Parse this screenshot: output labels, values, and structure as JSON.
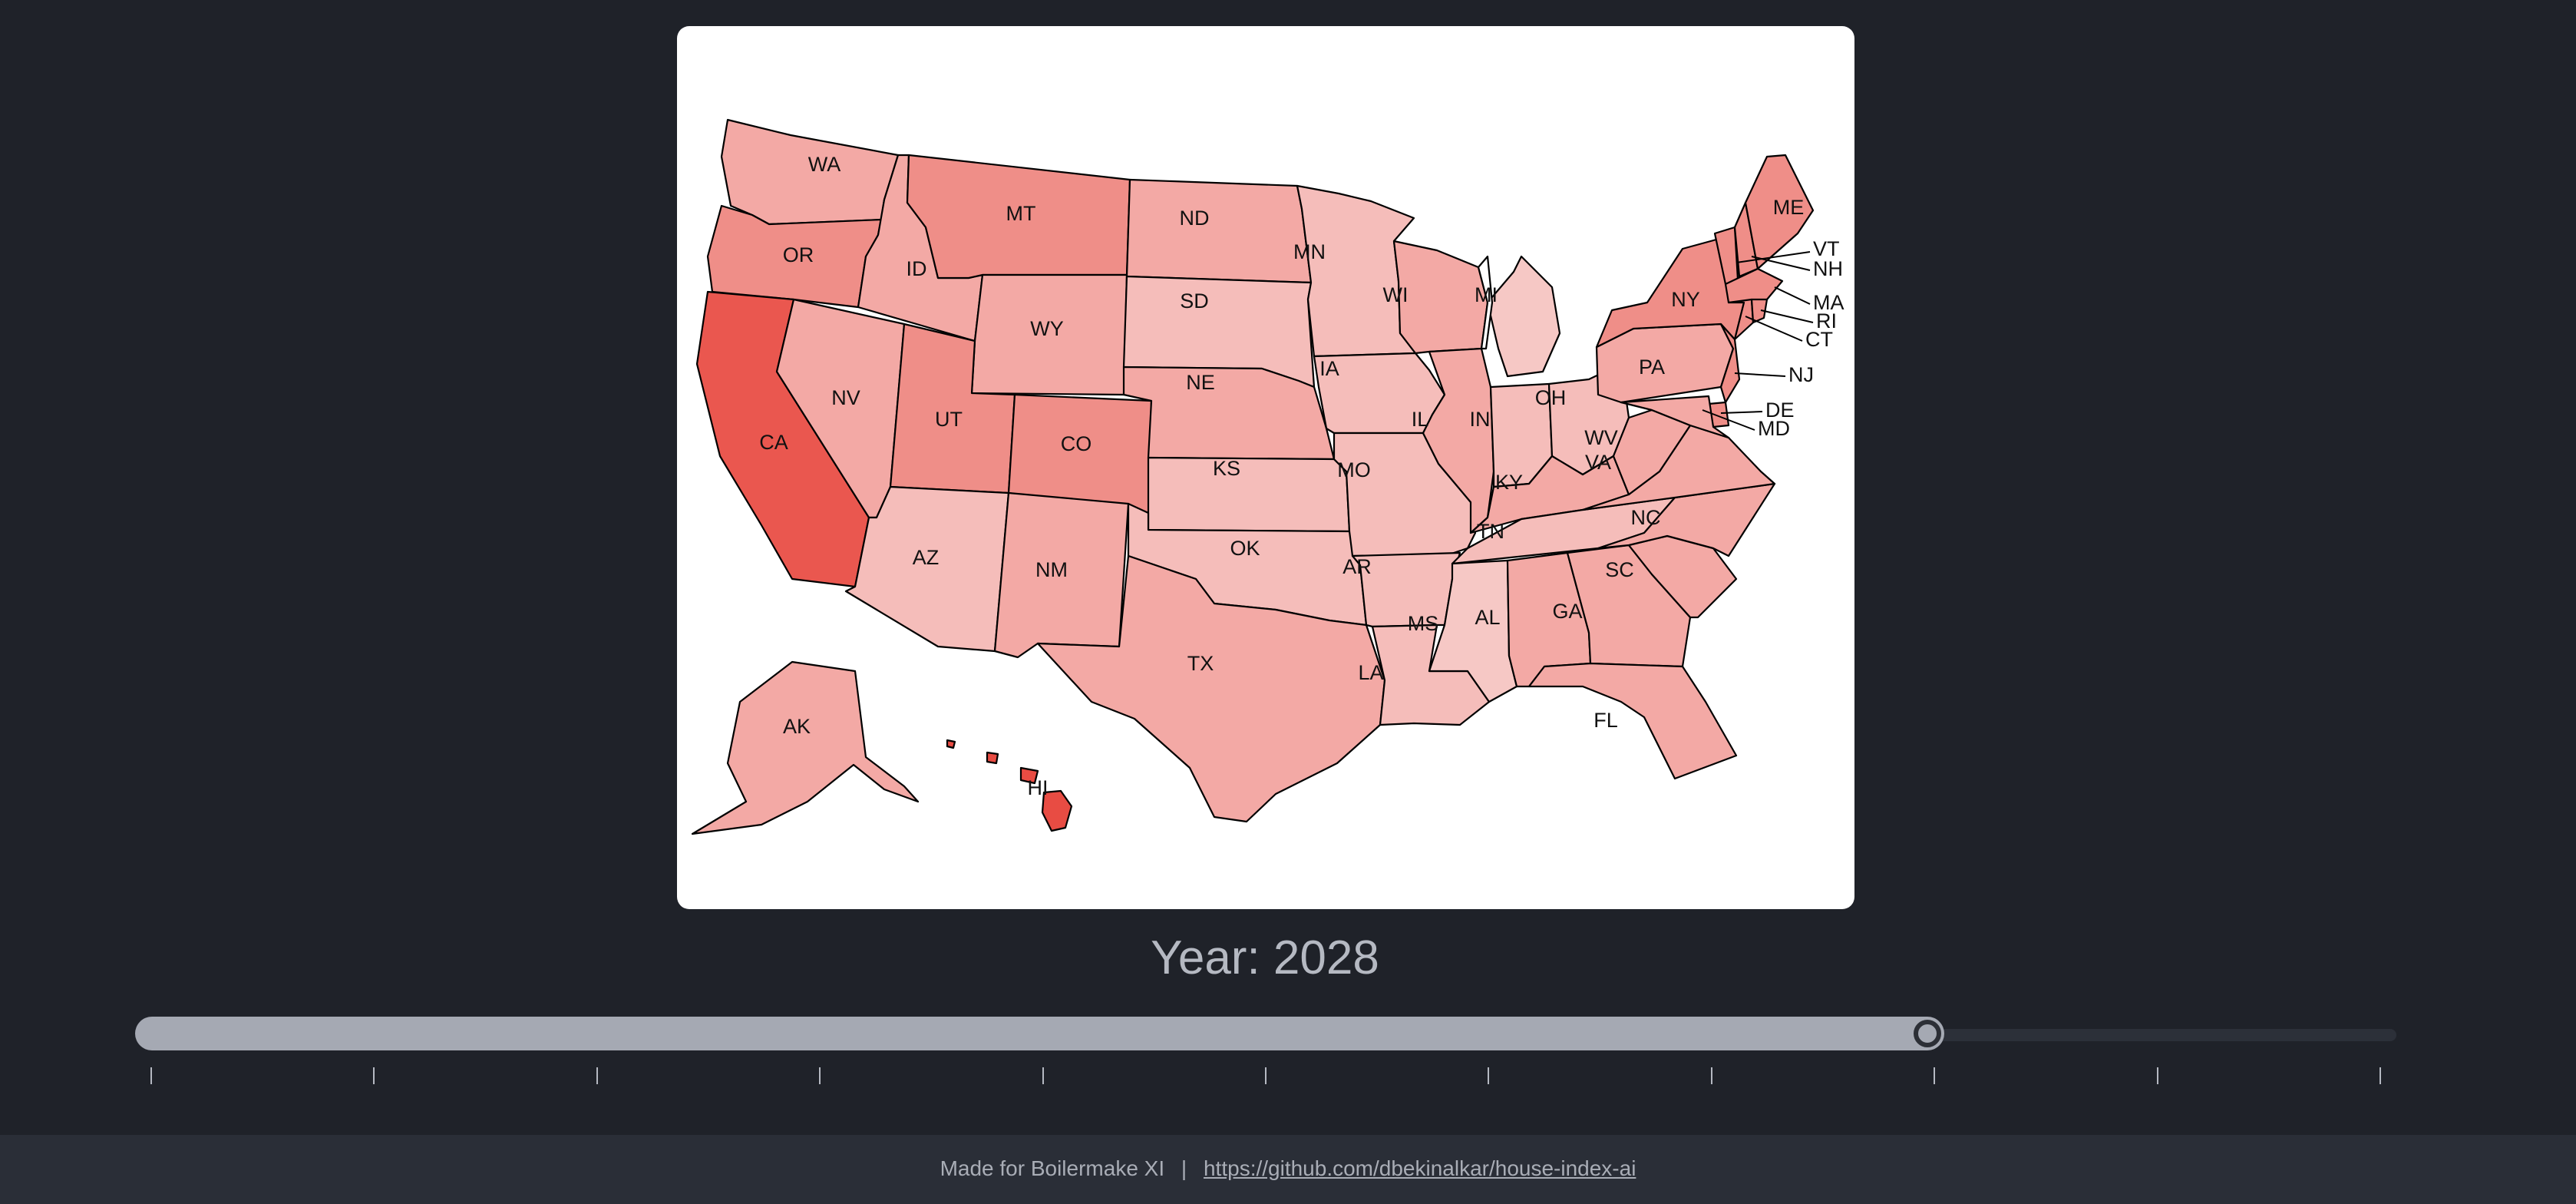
{
  "year": {
    "label": "Year: 2028",
    "slider_fraction": 0.7966,
    "tick_count": 11
  },
  "colors": {
    "background": "#1f2229",
    "card": "#ffffff",
    "highest": "#ea4e45",
    "high": "#ec5a52",
    "medium_high": "#ef8e88",
    "medium": "#f3a9a5",
    "low": "#f5bdba",
    "lowest": "#f6c8c5"
  },
  "states": [
    {
      "abbr": "WA"
    },
    {
      "abbr": "OR"
    },
    {
      "abbr": "CA"
    },
    {
      "abbr": "ID"
    },
    {
      "abbr": "NV"
    },
    {
      "abbr": "MT"
    },
    {
      "abbr": "WY"
    },
    {
      "abbr": "UT"
    },
    {
      "abbr": "CO"
    },
    {
      "abbr": "AZ"
    },
    {
      "abbr": "NM"
    },
    {
      "abbr": "ND"
    },
    {
      "abbr": "SD"
    },
    {
      "abbr": "NE"
    },
    {
      "abbr": "KS"
    },
    {
      "abbr": "OK"
    },
    {
      "abbr": "TX"
    },
    {
      "abbr": "MN"
    },
    {
      "abbr": "IA"
    },
    {
      "abbr": "MO"
    },
    {
      "abbr": "AR"
    },
    {
      "abbr": "LA"
    },
    {
      "abbr": "WI"
    },
    {
      "abbr": "IL"
    },
    {
      "abbr": "MI"
    },
    {
      "abbr": "IN"
    },
    {
      "abbr": "OH"
    },
    {
      "abbr": "KY"
    },
    {
      "abbr": "TN"
    },
    {
      "abbr": "MS"
    },
    {
      "abbr": "AL"
    },
    {
      "abbr": "GA"
    },
    {
      "abbr": "FL"
    },
    {
      "abbr": "SC"
    },
    {
      "abbr": "NC"
    },
    {
      "abbr": "VA"
    },
    {
      "abbr": "WV"
    },
    {
      "abbr": "PA"
    },
    {
      "abbr": "NY"
    },
    {
      "abbr": "ME"
    },
    {
      "abbr": "VT"
    },
    {
      "abbr": "NH"
    },
    {
      "abbr": "MA"
    },
    {
      "abbr": "RI"
    },
    {
      "abbr": "CT"
    },
    {
      "abbr": "NJ"
    },
    {
      "abbr": "DE"
    },
    {
      "abbr": "MD"
    },
    {
      "abbr": "AK"
    },
    {
      "abbr": "HI"
    }
  ],
  "footer": {
    "prefix": "Made for Boilermake XI",
    "separator": "|",
    "link_text": "https://github.com/dbekinalkar/house-index-ai"
  }
}
